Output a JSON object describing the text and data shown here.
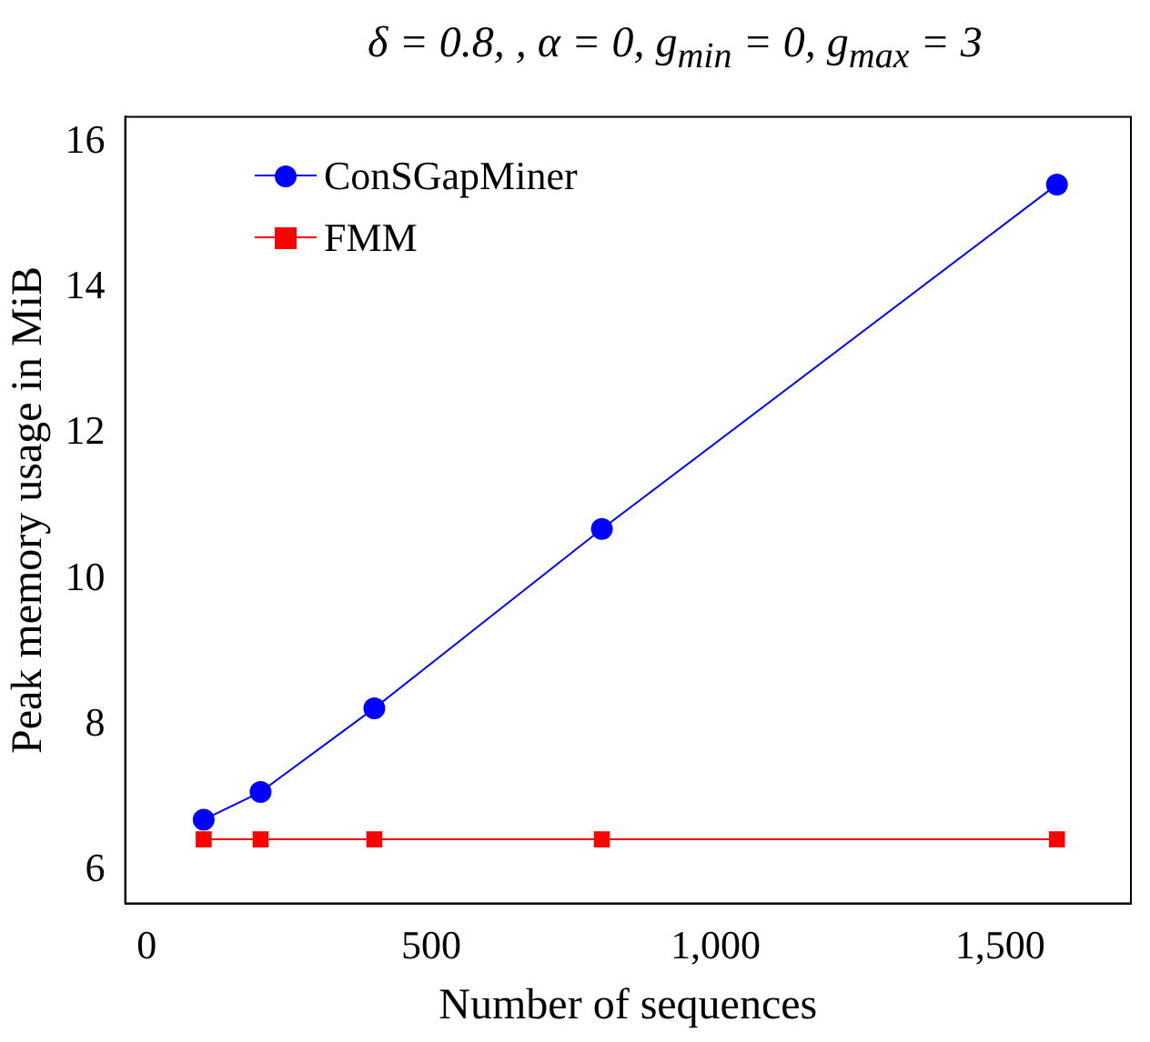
{
  "chart_data": {
    "type": "line",
    "title": "δ = 0.8, , α = 0, g$_{min}$ = 0, g$_{max}$ = 3",
    "xlabel": "Number of sequences",
    "ylabel": "Peak memory usage in MiB",
    "x": [
      100,
      200,
      400,
      800,
      1600
    ],
    "series": [
      {
        "name": "ConSGapMiner",
        "color": "#0000ff",
        "marker": "circle",
        "values": [
          6.7,
          7.08,
          8.23,
          10.69,
          15.42
        ]
      },
      {
        "name": "FMM",
        "color": "#ff0000",
        "marker": "square",
        "values": [
          6.43,
          6.43,
          6.43,
          6.43,
          6.43
        ]
      }
    ],
    "xlim": [
      -38,
      1730
    ],
    "xticks": [
      0,
      500,
      {
        "value": 1000,
        "label": "1,000"
      },
      {
        "value": 1500,
        "label": "1,500"
      }
    ],
    "ylim": [
      5.55,
      16.35
    ],
    "yticks": [
      6,
      8,
      10,
      12,
      14,
      16
    ],
    "grid": false,
    "legend": "top left"
  }
}
